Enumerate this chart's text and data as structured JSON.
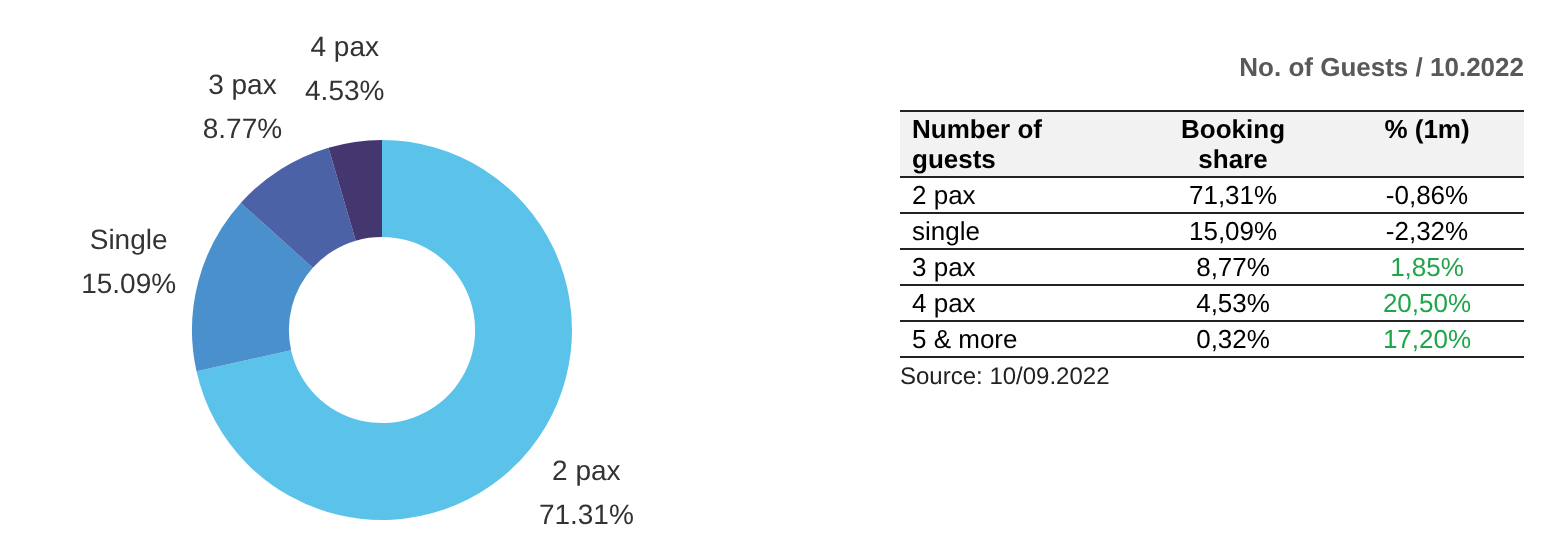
{
  "chart_data": [
    {
      "type": "donut",
      "categories": [
        "2 pax",
        "Single",
        "3 pax",
        "4 pax"
      ],
      "values": [
        71.31,
        15.09,
        8.77,
        4.53
      ],
      "colors": [
        "#5bc2ea",
        "#4a90cc",
        "#4b62a6",
        "#44366f"
      ],
      "value_labels": [
        "71.31%",
        "15.09%",
        "8.77%",
        "4.53%"
      ],
      "legend": false
    },
    {
      "type": "other",
      "title": "No. of Guests / 10.2022",
      "ylabel": "Number of guests",
      "categories": [
        "2 pax",
        "single",
        "3 pax",
        "4 pax",
        "5 & more"
      ],
      "series": [
        {
          "name": "Booking share",
          "values": [
            71.31,
            15.09,
            8.77,
            4.53,
            0.32
          ],
          "value_labels": [
            "71,31%",
            "15,09%",
            "8,77%",
            "4,53%",
            "0,32%"
          ],
          "colors": [
            "#000000",
            "#000000",
            "#000000",
            "#000000",
            "#000000"
          ]
        },
        {
          "name": "% (1m)",
          "values": [
            -0.86,
            -2.32,
            1.85,
            20.5,
            17.2
          ],
          "value_labels": [
            "-0,86%",
            "-2,32%",
            "1,85%",
            "20,50%",
            "17,20%"
          ],
          "colors": [
            "#000000",
            "#000000",
            "#1fa64a",
            "#1fa64a",
            "#1fa64a"
          ]
        }
      ],
      "annotations": [
        "Source: 10/09.2022"
      ]
    }
  ]
}
